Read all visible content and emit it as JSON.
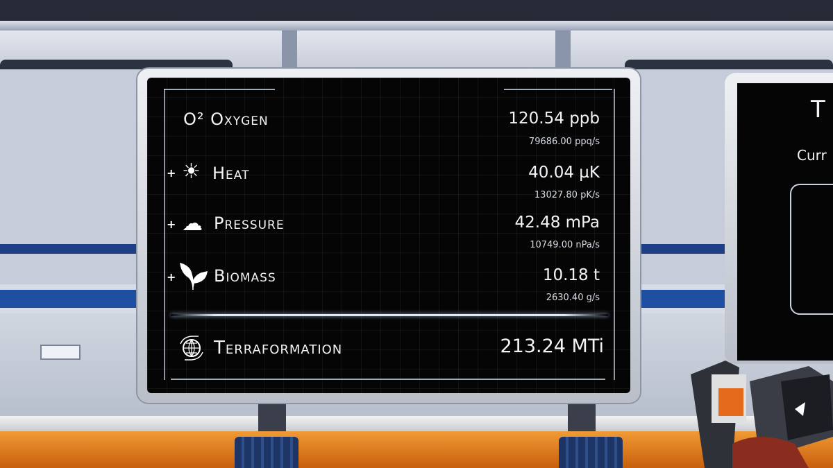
{
  "panel": {
    "rows": [
      {
        "name": "oxygen",
        "icon": "o2-icon",
        "icon_text": "O²",
        "label": "Oxygen",
        "value": "120.54 ppb",
        "rate": "79686.00 ppq/s",
        "has_plus": false
      },
      {
        "name": "heat",
        "icon": "sun-icon",
        "icon_text": "☀",
        "label": "Heat",
        "value": "40.04 µK",
        "rate": "13027.80 pK/s",
        "has_plus": true
      },
      {
        "name": "pressure",
        "icon": "cloud-icon",
        "icon_text": "☁",
        "label": "Pressure",
        "value": "42.48 mPa",
        "rate": "10749.00 nPa/s",
        "has_plus": true
      },
      {
        "name": "biomass",
        "icon": "leaf-icon",
        "icon_text": "",
        "label": "Biomass",
        "value": "10.18 t",
        "rate": "2630.40 g/s",
        "has_plus": true
      }
    ],
    "plus_symbol": "+",
    "total": {
      "icon": "globe-cycle-icon",
      "label": "Terraformation",
      "value": "213.24 MTi"
    }
  },
  "right_panel": {
    "title_partial": "T",
    "subtitle_partial": "Curr"
  },
  "colors": {
    "screen": "#050506",
    "text": "#f2f4f7",
    "wall_blue": "#1f4fa0",
    "floor_orange": "#e07a1a"
  }
}
